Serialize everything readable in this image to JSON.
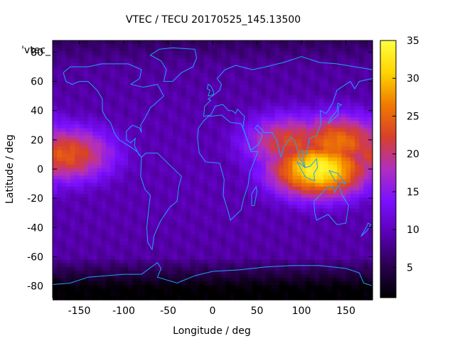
{
  "chart_data": {
    "type": "heatmap",
    "title": "VTEC / TECU 20170525_145.13500",
    "xlabel": "Longitude / deg",
    "ylabel": "Latitude / deg",
    "key_label": "'vtec_",
    "xlim": [
      -180,
      180
    ],
    "ylim": [
      -88,
      88
    ],
    "x_ticks": [
      -150,
      -100,
      -50,
      0,
      50,
      100,
      150
    ],
    "y_ticks": [
      -80,
      -60,
      -40,
      -20,
      0,
      20,
      40,
      60,
      80
    ],
    "colorbar": {
      "range": [
        1,
        35
      ],
      "ticks": [
        5,
        10,
        15,
        20,
        25,
        30,
        35
      ],
      "palette": [
        "#000000",
        "#2a0050",
        "#5a00b4",
        "#7a10ff",
        "#b02fc0",
        "#d8402a",
        "#f07a00",
        "#ffd400",
        "#ffff40"
      ]
    },
    "grid": false,
    "features": {
      "equatorial_anomaly_max_vtec": 34,
      "anomaly_centers": [
        {
          "lon": 120,
          "lat": 0,
          "vtec": 34
        },
        {
          "lon": 140,
          "lat": 18,
          "vtec": 26
        },
        {
          "lon": -165,
          "lat": 10,
          "vtec": 24
        },
        {
          "lon": 90,
          "lat": 18,
          "vtec": 23
        }
      ],
      "background_vtec": 8,
      "polar_min_vtec": 1
    }
  }
}
